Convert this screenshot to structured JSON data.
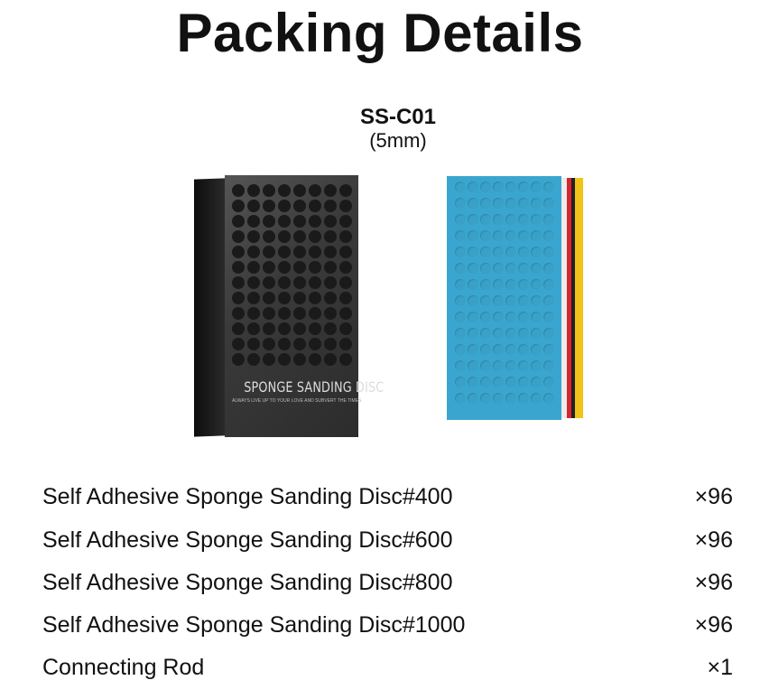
{
  "title": "Packing Details",
  "product": {
    "model": "SS-C01",
    "size": "(5mm)"
  },
  "box": {
    "title": "SPONGE SANDING DISC",
    "tagline": "ALWAYS LIVE UP TO YOUR LOVE AND SUBVERT THE TIMES"
  },
  "colors": {
    "box": "#2c2c2c",
    "sponge_blue": "#3aa6cf",
    "layers": [
      "#e8e8e8",
      "#d8262e",
      "#222222",
      "#f2c318"
    ]
  },
  "items": [
    {
      "name": "Self Adhesive Sponge Sanding Disc#400",
      "qty": "×96"
    },
    {
      "name": "Self Adhesive Sponge Sanding Disc#600",
      "qty": "×96"
    },
    {
      "name": "Self Adhesive Sponge Sanding Disc#800",
      "qty": "×96"
    },
    {
      "name": "Self Adhesive Sponge Sanding Disc#1000",
      "qty": "×96"
    },
    {
      "name": "Connecting Rod",
      "qty": "×1"
    }
  ]
}
